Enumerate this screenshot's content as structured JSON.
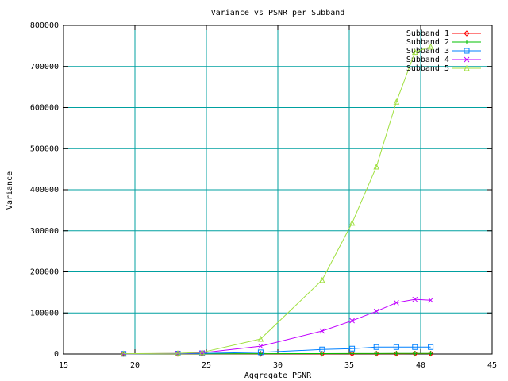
{
  "chart_data": {
    "type": "line",
    "title": "Variance vs PSNR per Subband",
    "xlabel": "Aggregate PSNR",
    "ylabel": "Variance",
    "x": [
      19.2,
      23.0,
      24.7,
      28.8,
      33.1,
      35.2,
      36.9,
      38.3,
      39.6,
      40.7
    ],
    "series": [
      {
        "name": "Subband 1",
        "color": "#ff0000",
        "marker": "diamond",
        "values": [
          200,
          300,
          400,
          500,
          600,
          700,
          800,
          800,
          900,
          900
        ]
      },
      {
        "name": "Subband 2",
        "color": "#00c000",
        "marker": "plus",
        "values": [
          300,
          400,
          600,
          800,
          1000,
          1200,
          1300,
          1400,
          1500,
          1500
        ]
      },
      {
        "name": "Subband 3",
        "color": "#0080ff",
        "marker": "square",
        "values": [
          500,
          1000,
          1500,
          4000,
          11000,
          13000,
          17000,
          17000,
          17000,
          17000
        ]
      },
      {
        "name": "Subband 4",
        "color": "#c000ff",
        "marker": "cross",
        "values": [
          600,
          1500,
          3000,
          19000,
          56000,
          81000,
          104000,
          125000,
          133000,
          131000
        ]
      },
      {
        "name": "Subband 5",
        "color": "#a0e040",
        "marker": "triangle",
        "values": [
          700,
          1800,
          4000,
          36700,
          180000,
          319000,
          456000,
          614000,
          735000,
          748000
        ]
      }
    ],
    "xlim": [
      15,
      45
    ],
    "xticks": [
      15,
      20,
      25,
      30,
      35,
      40,
      45
    ],
    "ylim": [
      0,
      800000
    ],
    "yticks": [
      0,
      100000,
      200000,
      300000,
      400000,
      500000,
      600000,
      700000,
      800000
    ],
    "grid": true,
    "legend": "top-right"
  }
}
